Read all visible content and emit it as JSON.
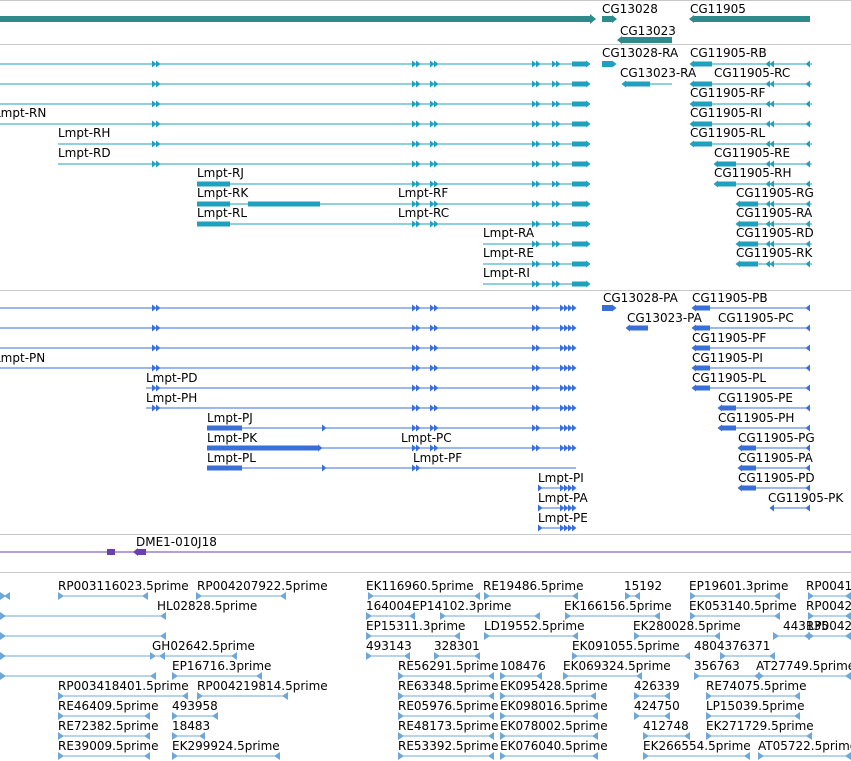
{
  "tracks": {
    "gene_span": {
      "color": "#2e8b8b",
      "labels": [
        "CG13028",
        "CG13023",
        "CG11905"
      ]
    },
    "transcripts": {
      "color": "#1fa0bf",
      "labels": [
        "CG13028-RA",
        "CG11905-RB",
        "CG13023-RA",
        "CG11905-RC",
        "CG11905-RF",
        "Lmpt-RN",
        "CG11905-RI",
        "Lmpt-RH",
        "CG11905-RL",
        "Lmpt-RD",
        "CG11905-RE",
        "Lmpt-RJ",
        "CG11905-RH",
        "Lmpt-RK",
        "Lmpt-RF",
        "CG11905-RG",
        "Lmpt-RL",
        "Lmpt-RC",
        "CG11905-RA",
        "Lmpt-RA",
        "CG11905-RD",
        "Lmpt-RE",
        "CG11905-RK",
        "Lmpt-RI"
      ]
    },
    "proteins": {
      "color": "#3a6fd8",
      "labels": [
        "CG13028-PA",
        "CG11905-PB",
        "CG13023-PA",
        "CG11905-PC",
        "CG11905-PF",
        "Lmpt-PN",
        "CG11905-PI",
        "Lmpt-PD",
        "CG11905-PL",
        "Lmpt-PH",
        "CG11905-PE",
        "Lmpt-PJ",
        "CG11905-PH",
        "Lmpt-PK",
        "Lmpt-PC",
        "CG11905-PG",
        "Lmpt-PL",
        "Lmpt-PF",
        "CG11905-PA",
        "CG11905-PD",
        "Lmpt-PI",
        "CG11905-PK",
        "Lmpt-PA",
        "Lmpt-PE"
      ]
    },
    "clone": {
      "color": "#6a3fb0",
      "labels": [
        "DME1-010J18"
      ]
    },
    "ests": {
      "color": "#6fa8d8",
      "labels": [
        "RP003116023.5prime",
        "RP004207922.5prime",
        "EK116960.5prime",
        "RE19486.5prime",
        "15192",
        "EP19601.3prime",
        "RP0041",
        "HL02828.5prime",
        "164004",
        "EP14102.3prime",
        "EK166156.5prime",
        "EK053140.5prime",
        "RP0042",
        "EP15311.3prime",
        "LD19552.5prime",
        "EK280028.5prime",
        "443135",
        "RP0042",
        "GH02642.5prime",
        "493143",
        "328301",
        "EK091055.5prime",
        "4804376371",
        "EP16716.3prime",
        "RE56291.5prime",
        "108476",
        "EK069324.5prime",
        "356763",
        "AT27749.5prime",
        "RP003418401.5prime",
        "RP004219814.5prime",
        "RE63348.5prime",
        "EK095428.5prime",
        "426339",
        "RE74075.5prime",
        "RE46409.5prime",
        "493958",
        "RE05976.5prime",
        "EK098016.5prime",
        "424750",
        "LP15039.5prime",
        "RE72382.5prime",
        "18483",
        "RE48173.5prime",
        "EK078002.5prime",
        "412748",
        "EK271729.5prime",
        "RE39009.5prime",
        "EK299924.5prime",
        "RE53392.5prime",
        "EK076040.5prime",
        "EK266554.5prime",
        "AT05722.5prime"
      ]
    }
  }
}
